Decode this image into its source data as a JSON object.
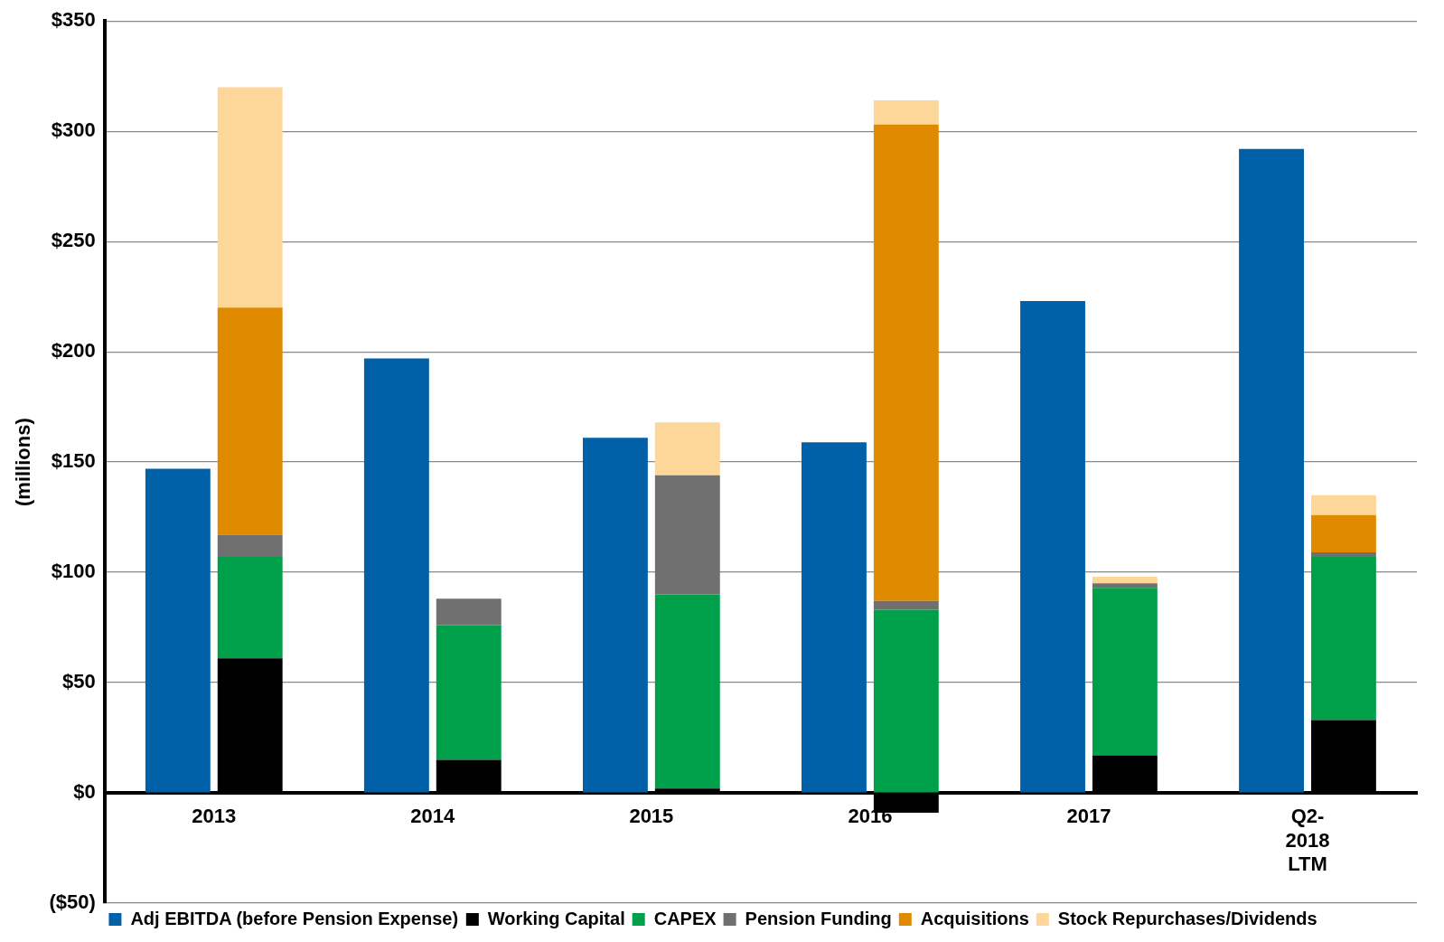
{
  "chart_data": {
    "type": "bar",
    "ylabel": "(millions)",
    "categories": [
      "2013",
      "2014",
      "2015",
      "2016",
      "2017",
      "Q2- 2018 LTM"
    ],
    "series": [
      {
        "name": "Adj EBITDA (before Pension Expense)",
        "color": "#0060a8",
        "values": [
          147,
          197,
          161,
          159,
          223,
          292
        ]
      },
      {
        "name": "Working Capital",
        "color": "#000000",
        "values": [
          61,
          15,
          2,
          -9,
          17,
          33
        ],
        "base": [
          0,
          0,
          0,
          0,
          0,
          0
        ]
      },
      {
        "name": "CAPEX",
        "color": "#00a04a",
        "values": [
          46,
          61,
          88,
          83,
          76,
          74
        ],
        "base": [
          61,
          15,
          2,
          0,
          17,
          33
        ]
      },
      {
        "name": "Pension Funding",
        "color": "#707070",
        "values": [
          10,
          12,
          54,
          4,
          2,
          2
        ],
        "base": [
          107,
          76,
          90,
          83,
          93,
          107
        ]
      },
      {
        "name": "Acquisitions",
        "color": "#e08a00",
        "values": [
          103,
          null,
          null,
          216,
          null,
          17
        ],
        "base": [
          117,
          null,
          null,
          87,
          null,
          109
        ]
      },
      {
        "name": "Stock Repurchases/Dividends",
        "color": "#fdd79a",
        "values": [
          100,
          null,
          24,
          11,
          3,
          9
        ],
        "base": [
          220,
          null,
          144,
          303,
          95,
          126
        ]
      }
    ],
    "ylim": [
      -50,
      350
    ],
    "yticks": [
      {
        "value": -50,
        "label": "($50)"
      },
      {
        "value": 0,
        "label": "$0"
      },
      {
        "value": 50,
        "label": "$50"
      },
      {
        "value": 100,
        "label": "$100"
      },
      {
        "value": 150,
        "label": "$150"
      },
      {
        "value": 200,
        "label": "$200"
      },
      {
        "value": 250,
        "label": "$250"
      },
      {
        "value": 300,
        "label": "$300"
      },
      {
        "value": 350,
        "label": "$350"
      }
    ],
    "grid": "y",
    "legend": "bottom"
  }
}
